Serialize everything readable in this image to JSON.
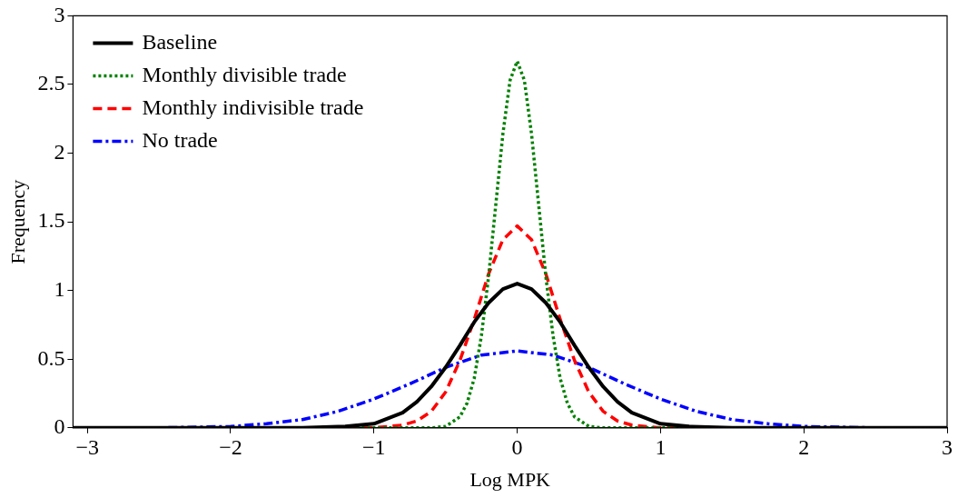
{
  "chart_data": {
    "type": "line",
    "xlabel": "Log MPK",
    "ylabel": "Frequency",
    "xlim": [
      -3.1,
      3
    ],
    "ylim": [
      0,
      3
    ],
    "xticks": [
      -3,
      -2,
      -1,
      0,
      1,
      2,
      3
    ],
    "yticks": [
      0,
      0.5,
      1,
      1.5,
      2,
      2.5,
      3
    ],
    "grid": false,
    "legend": "top left",
    "marker": "none",
    "series": [
      {
        "name": "Baseline",
        "color": "#000000",
        "line_style": "solid",
        "x": [
          -3.1,
          -1.5,
          -1.2,
          -1,
          -0.8,
          -0.7,
          -0.6,
          -0.5,
          -0.4,
          -0.3,
          -0.2,
          -0.1,
          0,
          0.1,
          0.2,
          0.3,
          0.4,
          0.5,
          0.6,
          0.7,
          0.8,
          1,
          1.2,
          1.5,
          3
        ],
        "values": [
          0,
          0,
          0.01,
          0.03,
          0.11,
          0.19,
          0.3,
          0.44,
          0.6,
          0.77,
          0.91,
          1.01,
          1.05,
          1.01,
          0.91,
          0.77,
          0.6,
          0.44,
          0.3,
          0.19,
          0.11,
          0.03,
          0.01,
          0,
          0
        ]
      },
      {
        "name": "Monthly divisible trade",
        "color": "#008000",
        "line_style": "dotted",
        "x": [
          -3.1,
          -0.6,
          -0.5,
          -0.4,
          -0.35,
          -0.3,
          -0.25,
          -0.2,
          -0.15,
          -0.1,
          -0.05,
          0,
          0.05,
          0.1,
          0.15,
          0.2,
          0.25,
          0.3,
          0.35,
          0.4,
          0.5,
          0.6,
          3
        ],
        "values": [
          0,
          0,
          0.01,
          0.08,
          0.18,
          0.36,
          0.67,
          1.1,
          1.62,
          2.14,
          2.53,
          2.67,
          2.53,
          2.14,
          1.62,
          1.1,
          0.67,
          0.36,
          0.18,
          0.08,
          0.01,
          0,
          0
        ]
      },
      {
        "name": "Monthly indivisible trade",
        "color": "#ff0000",
        "line_style": "dashed",
        "x": [
          -3.1,
          -1,
          -0.8,
          -0.7,
          -0.6,
          -0.5,
          -0.4,
          -0.3,
          -0.2,
          -0.1,
          0,
          0.1,
          0.2,
          0.3,
          0.4,
          0.5,
          0.6,
          0.7,
          0.8,
          1,
          3
        ],
        "values": [
          0,
          0,
          0.02,
          0.05,
          0.12,
          0.26,
          0.49,
          0.79,
          1.12,
          1.37,
          1.47,
          1.37,
          1.12,
          0.79,
          0.49,
          0.26,
          0.12,
          0.05,
          0.02,
          0,
          0
        ]
      },
      {
        "name": "No trade",
        "color": "#0000ff",
        "line_style": "dashdot",
        "x": [
          -3.1,
          -2.5,
          -2,
          -1.75,
          -1.5,
          -1.25,
          -1,
          -0.75,
          -0.5,
          -0.25,
          0,
          0.25,
          0.5,
          0.75,
          1,
          1.25,
          1.5,
          1.75,
          2,
          2.5,
          3
        ],
        "values": [
          0,
          0,
          0.01,
          0.03,
          0.06,
          0.12,
          0.21,
          0.32,
          0.44,
          0.53,
          0.56,
          0.53,
          0.44,
          0.32,
          0.21,
          0.12,
          0.06,
          0.03,
          0.01,
          0,
          0
        ]
      }
    ]
  }
}
